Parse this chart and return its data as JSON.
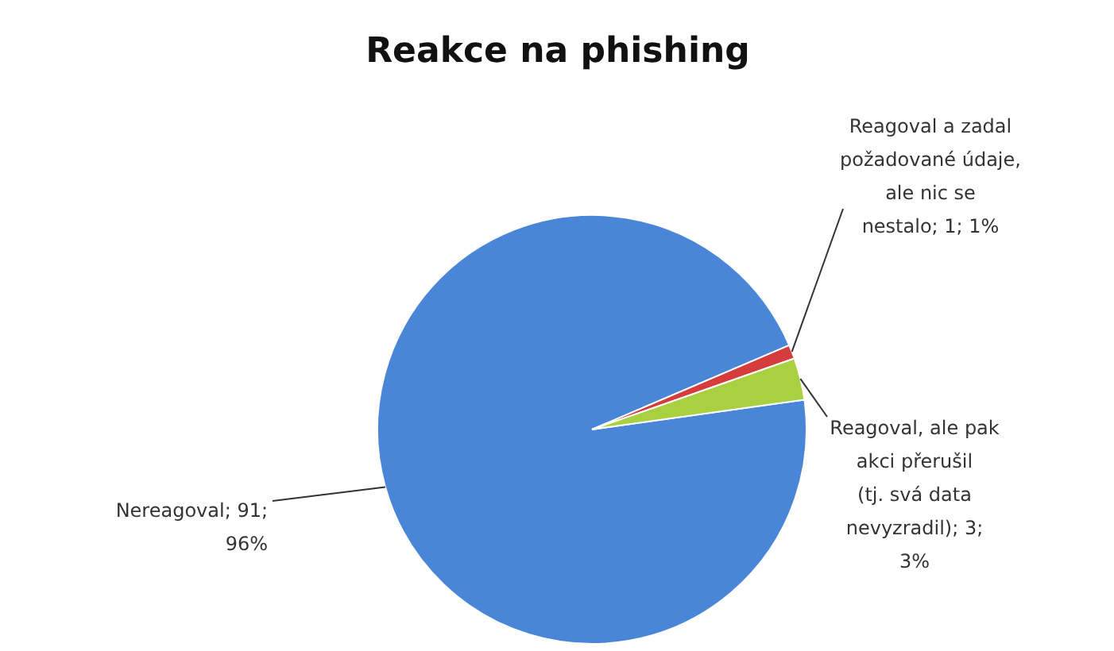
{
  "chart_data": {
    "type": "pie",
    "title": "Reakce na phishing",
    "categories": [
      "Nereagoval",
      "Reagoval a zadal požadované údaje, ale nic se nestalo",
      "Reagoval, ale pak akci přerušil (tj. svá data nevyzradil)"
    ],
    "values": [
      91,
      1,
      3
    ],
    "colors": [
      "#4a86d8",
      "#d63c3c",
      "#a8d040"
    ],
    "value_labels": [
      "91; 96%",
      "1; 1%",
      "3; 3%"
    ]
  }
}
